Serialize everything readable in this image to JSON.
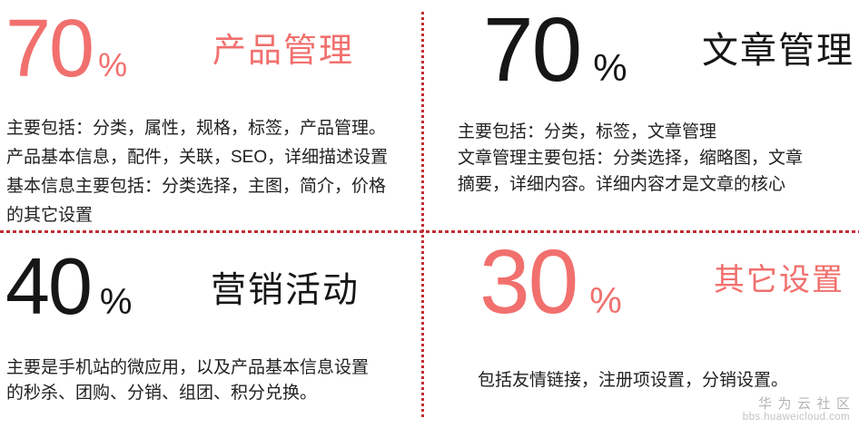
{
  "colors": {
    "accent": "#f1706e",
    "dark": "#161616",
    "body": "#212121",
    "divider": "#c12e33",
    "wm1": "#b4b4b4",
    "wm2": "#c3c3c3",
    "bg": "#ffffff"
  },
  "quadrants": [
    {
      "id": "product-management",
      "percent": "70",
      "percent_sign": "%",
      "title": "产品管理",
      "color": "#f1706e",
      "lines": [
        "主要包括：分类，属性，规格，标签，产品管理。",
        "产品基本信息，配件，关联，SEO，详细描述设置",
        "基本信息主要包括：分类选择，主图，简介，价格",
        "的其它设置"
      ]
    },
    {
      "id": "article-management",
      "percent": "70",
      "percent_sign": "%",
      "title": "文章管理",
      "color": "#161616",
      "lines": [
        "主要包括：分类，标签，文章管理",
        "文章管理主要包括：分类选择，缩略图，文章",
        "摘要，详细内容。详细内容才是文章的核心"
      ]
    },
    {
      "id": "marketing-activities",
      "percent": "40",
      "percent_sign": "%",
      "title": "营销活动",
      "color": "#161616",
      "lines": [
        "主要是手机站的微应用，以及产品基本信息设置",
        "的秒杀、团购、分销、组团、积分兑换。"
      ]
    },
    {
      "id": "other-settings",
      "percent": "30",
      "percent_sign": "%",
      "title": "其它设置",
      "color": "#f1706e",
      "lines": [
        "包括友情链接，注册项设置，分销设置。"
      ]
    }
  ],
  "watermark": {
    "community": "华为云社区",
    "url": "bbs.huaweicloud.com"
  }
}
